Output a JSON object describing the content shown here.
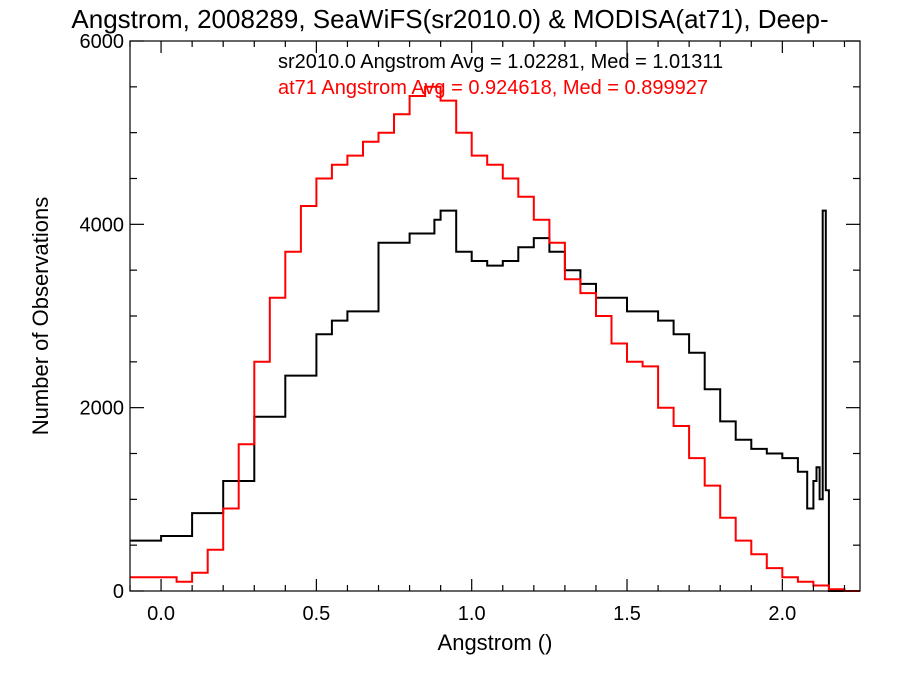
{
  "chart_data": {
    "type": "line",
    "title": "Angstrom, 2008289, SeaWiFS(sr2010.0) & MODISA(at71), Deep-",
    "xlabel": "Angstrom ()",
    "ylabel": "Number of Observations",
    "xlim": [
      -0.1,
      2.25
    ],
    "ylim": [
      0,
      6000
    ],
    "xticks": [
      0.0,
      0.5,
      1.0,
      1.5,
      2.0
    ],
    "xtick_labels": [
      "0.0",
      "0.5",
      "1.0",
      "1.5",
      "2.0"
    ],
    "yticks": [
      0,
      2000,
      4000,
      6000
    ],
    "ytick_labels": [
      "0",
      "2000",
      "4000",
      "6000"
    ],
    "grid": false,
    "annotations": [
      {
        "text": "sr2010.0 Angstrom Avg = 1.02281, Med = 1.01311",
        "color": "#000000"
      },
      {
        "text": "at71 Angstrom Avg = 0.924618, Med = 0.899927",
        "color": "#ff0000"
      }
    ],
    "series": [
      {
        "color": "#000000",
        "x": [
          -0.1,
          0.0,
          0.1,
          0.2,
          0.3,
          0.4,
          0.5,
          0.55,
          0.6,
          0.7,
          0.8,
          0.88,
          0.9,
          0.95,
          1.0,
          1.05,
          1.1,
          1.15,
          1.2,
          1.25,
          1.3,
          1.35,
          1.4,
          1.5,
          1.6,
          1.65,
          1.7,
          1.75,
          1.8,
          1.85,
          1.9,
          1.95,
          2.0,
          2.05,
          2.08,
          2.1,
          2.11,
          2.12,
          2.13,
          2.14,
          2.15,
          2.16,
          2.25
        ],
        "y": [
          550,
          600,
          850,
          1200,
          1900,
          2350,
          2800,
          2950,
          3050,
          3800,
          3900,
          4050,
          4150,
          3700,
          3600,
          3550,
          3600,
          3750,
          3850,
          3700,
          3500,
          3350,
          3200,
          3050,
          2950,
          2800,
          2600,
          2200,
          1850,
          1650,
          1550,
          1500,
          1450,
          1300,
          900,
          1200,
          1350,
          1000,
          4150,
          1100,
          0,
          0,
          0
        ]
      },
      {
        "color": "#ff0000",
        "x": [
          -0.1,
          0.0,
          0.05,
          0.1,
          0.15,
          0.2,
          0.25,
          0.3,
          0.35,
          0.4,
          0.45,
          0.5,
          0.55,
          0.6,
          0.65,
          0.7,
          0.75,
          0.8,
          0.85,
          0.9,
          0.95,
          1.0,
          1.05,
          1.1,
          1.15,
          1.2,
          1.25,
          1.3,
          1.35,
          1.4,
          1.45,
          1.5,
          1.55,
          1.6,
          1.65,
          1.7,
          1.75,
          1.8,
          1.85,
          1.9,
          1.95,
          2.0,
          2.05,
          2.1,
          2.15,
          2.2,
          2.25
        ],
        "y": [
          150,
          150,
          100,
          200,
          450,
          900,
          1600,
          2500,
          3200,
          3700,
          4200,
          4500,
          4650,
          4750,
          4900,
          5000,
          5200,
          5400,
          5500,
          5350,
          5000,
          4750,
          4650,
          4500,
          4300,
          4050,
          3800,
          3400,
          3250,
          3000,
          2700,
          2500,
          2450,
          2000,
          1800,
          1450,
          1150,
          800,
          550,
          400,
          250,
          150,
          100,
          60,
          20,
          0,
          0
        ]
      }
    ]
  }
}
